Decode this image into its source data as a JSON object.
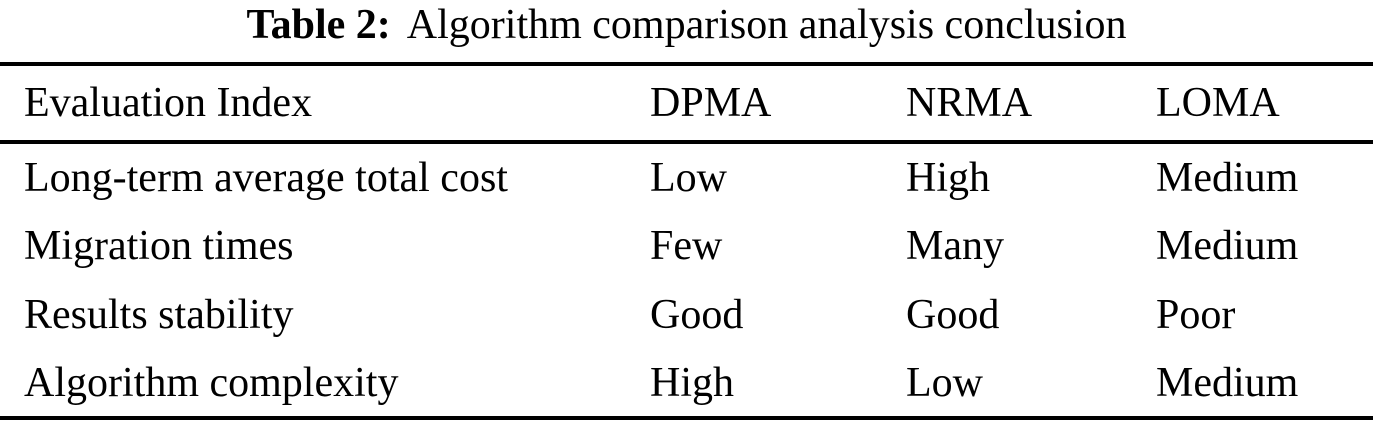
{
  "caption": {
    "label": "Table 2:",
    "text": "Algorithm comparison analysis conclusion"
  },
  "table": {
    "columns": [
      "Evaluation Index",
      "DPMA",
      "NRMA",
      "LOMA"
    ],
    "rows": [
      [
        "Long-term average total cost",
        "Low",
        "High",
        "Medium"
      ],
      [
        "Migration times",
        "Few",
        "Many",
        "Medium"
      ],
      [
        "Results stability",
        "Good",
        "Good",
        "Poor"
      ],
      [
        "Algorithm complexity",
        "High",
        "Low",
        "Medium"
      ]
    ]
  },
  "colors": {
    "text": "#000000",
    "background": "#ffffff",
    "rule": "#000000"
  }
}
